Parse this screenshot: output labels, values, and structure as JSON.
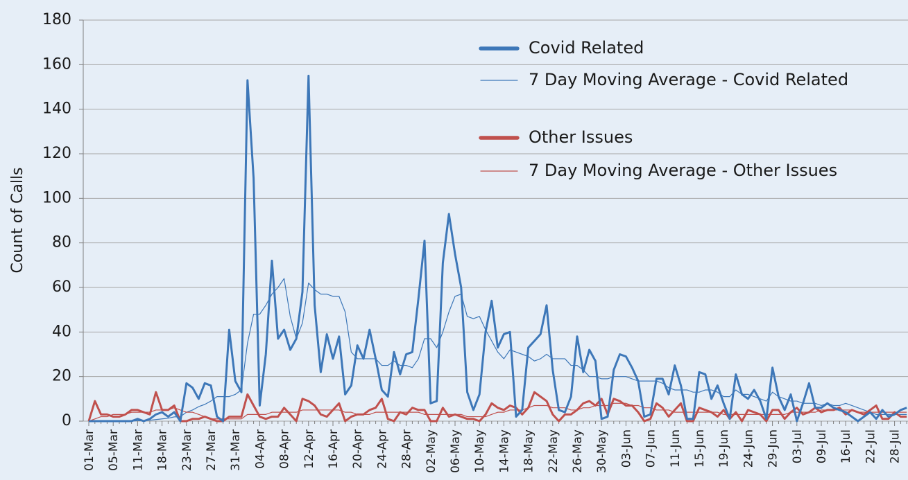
{
  "chart_data": {
    "type": "line",
    "y_label": "Count of Calls",
    "ylim": [
      0,
      180
    ],
    "yticks": [
      0,
      20,
      40,
      60,
      80,
      100,
      120,
      140,
      160,
      180
    ],
    "grid": true,
    "categories": [
      "01-Mar",
      null,
      null,
      null,
      "05-Mar",
      null,
      null,
      null,
      "11-Mar",
      null,
      null,
      null,
      "18-Mar",
      null,
      null,
      null,
      "23-Mar",
      null,
      null,
      null,
      "27-Mar",
      null,
      null,
      null,
      "31-Mar",
      null,
      null,
      null,
      "04-Apr",
      null,
      null,
      null,
      "08-Apr",
      null,
      null,
      null,
      "12-Apr",
      null,
      null,
      null,
      "16-Apr",
      null,
      null,
      null,
      "20-Apr",
      null,
      null,
      null,
      "24-Apr",
      null,
      null,
      null,
      "28-Apr",
      null,
      null,
      null,
      "02-May",
      null,
      null,
      null,
      "06-May",
      null,
      null,
      null,
      "10-May",
      null,
      null,
      null,
      "14-May",
      null,
      null,
      null,
      "18-May",
      null,
      null,
      null,
      "22-May",
      null,
      null,
      null,
      "26-May",
      null,
      null,
      null,
      "30-May",
      null,
      null,
      null,
      "03-Jun",
      null,
      null,
      null,
      "07-Jun",
      null,
      null,
      null,
      "11-Jun",
      null,
      null,
      null,
      "15-Jun",
      null,
      null,
      null,
      "19-Jun",
      null,
      null,
      null,
      "24-Jun",
      null,
      null,
      null,
      "29-Jun",
      null,
      null,
      null,
      "03-Jul",
      null,
      null,
      null,
      "09-Jul",
      null,
      null,
      null,
      "16-Jul",
      null,
      null,
      null,
      "22-Jul",
      null,
      null,
      null,
      "28-Jul",
      null,
      null
    ],
    "series": [
      {
        "name": "Covid Related",
        "color": "#3d77b8",
        "line_width": 3,
        "values": [
          0,
          0,
          0,
          0,
          0,
          0,
          0,
          0,
          1,
          0,
          1,
          3,
          4,
          2,
          4,
          0,
          17,
          15,
          10,
          17,
          16,
          2,
          0,
          41,
          18,
          13,
          153,
          109,
          7,
          30,
          72,
          37,
          41,
          32,
          37,
          58,
          155,
          52,
          22,
          39,
          28,
          38,
          12,
          16,
          34,
          28,
          41,
          28,
          14,
          11,
          31,
          21,
          30,
          31,
          55,
          81,
          8,
          9,
          71,
          93,
          75,
          60,
          13,
          5,
          12,
          40,
          54,
          33,
          39,
          40,
          2,
          5,
          33,
          36,
          39,
          52,
          23,
          5,
          4,
          11,
          38,
          22,
          32,
          27,
          1,
          2,
          23,
          30,
          29,
          24,
          18,
          2,
          3,
          19,
          19,
          12,
          25,
          16,
          1,
          1,
          22,
          21,
          10,
          16,
          8,
          1,
          21,
          12,
          10,
          14,
          9,
          1,
          24,
          11,
          5,
          12,
          0,
          8,
          17,
          6,
          6,
          8,
          6,
          5,
          4,
          2,
          0,
          2,
          4,
          1,
          5,
          2,
          3,
          5,
          6
        ]
      },
      {
        "name": "7 Day Moving Average - Covid Related",
        "color": "#3d77b8",
        "line_width": 1.2,
        "values": [
          0,
          0,
          0,
          0,
          0,
          0,
          0,
          0,
          0.2,
          0.2,
          0.4,
          0.7,
          1,
          1.3,
          1.9,
          2,
          4,
          5,
          6.5,
          7.5,
          9,
          11,
          11,
          11,
          12,
          14,
          35,
          48,
          48,
          52,
          57,
          60,
          64,
          47,
          37,
          44,
          62,
          59,
          57,
          57,
          56,
          56,
          49,
          31,
          28,
          28,
          28,
          28,
          25,
          25,
          27,
          25,
          25,
          24,
          28,
          37,
          37,
          33,
          40,
          49,
          56,
          57,
          47,
          46,
          47,
          41,
          36,
          31,
          28,
          32,
          31,
          30,
          29,
          27,
          28,
          30,
          28,
          28,
          28,
          25,
          25,
          23,
          20,
          20,
          19,
          19,
          20,
          20,
          20,
          19,
          18,
          18,
          18,
          18,
          17,
          15,
          14,
          14,
          14,
          13,
          13,
          14,
          14,
          13,
          11,
          11,
          14,
          12,
          12,
          11,
          10,
          9,
          13,
          11,
          10,
          9,
          9,
          8,
          8,
          8,
          7,
          8,
          7,
          7,
          8,
          7,
          6,
          5,
          4,
          3,
          3,
          3,
          3,
          3,
          3
        ]
      },
      {
        "name": "Other Issues",
        "color": "#c0504d",
        "line_width": 3,
        "values": [
          0,
          9,
          3,
          3,
          2,
          2,
          3,
          5,
          5,
          4,
          3,
          13,
          5,
          5,
          7,
          0,
          0,
          1,
          1,
          2,
          1,
          0,
          0,
          2,
          2,
          2,
          12,
          7,
          2,
          1,
          2,
          2,
          6,
          3,
          0,
          10,
          9,
          7,
          3,
          2,
          5,
          8,
          0,
          2,
          3,
          3,
          5,
          6,
          10,
          1,
          0,
          4,
          3,
          6,
          5,
          5,
          0,
          0,
          6,
          2,
          3,
          2,
          1,
          1,
          0,
          3,
          8,
          6,
          5,
          7,
          6,
          3,
          6,
          13,
          11,
          9,
          3,
          0,
          3,
          3,
          5,
          8,
          9,
          7,
          10,
          3,
          10,
          9,
          7,
          7,
          4,
          0,
          1,
          8,
          6,
          2,
          5,
          8,
          0,
          0,
          6,
          5,
          4,
          2,
          5,
          1,
          4,
          0,
          5,
          4,
          3,
          0,
          5,
          5,
          1,
          4,
          6,
          3,
          4,
          6,
          4,
          5,
          5,
          6,
          3,
          5,
          4,
          3,
          5,
          7,
          1,
          1,
          4,
          2,
          2
        ]
      },
      {
        "name": "7 Day Moving Average - Other Issues",
        "color": "#c0504d",
        "line_width": 1.2,
        "values": [
          0,
          1,
          2,
          2,
          3,
          3,
          3,
          4,
          4,
          4,
          4,
          5,
          5,
          5,
          6,
          5,
          4,
          4,
          3,
          2,
          1,
          1,
          1,
          1,
          1,
          1,
          3,
          3,
          3,
          3,
          4,
          4,
          4,
          4,
          4,
          5,
          5,
          5,
          5,
          5,
          5,
          5,
          4,
          4,
          3,
          3,
          3,
          4,
          4,
          4,
          4,
          4,
          4,
          4,
          4,
          3,
          3,
          3,
          3,
          3,
          3,
          3,
          2,
          2,
          2,
          2,
          3,
          4,
          4,
          5,
          5,
          5,
          6,
          7,
          7,
          7,
          6,
          6,
          6,
          5,
          5,
          6,
          6,
          7,
          7,
          7,
          8,
          8,
          8,
          7,
          7,
          6,
          6,
          5,
          5,
          5,
          4,
          4,
          4,
          4,
          4,
          4,
          4,
          4,
          3,
          3,
          3,
          3,
          3,
          3,
          3,
          3,
          3,
          3,
          3,
          4,
          4,
          4,
          4,
          4,
          5,
          5,
          5,
          5,
          5,
          5,
          4,
          4,
          4,
          4,
          4,
          4,
          4,
          4,
          4
        ]
      }
    ]
  }
}
